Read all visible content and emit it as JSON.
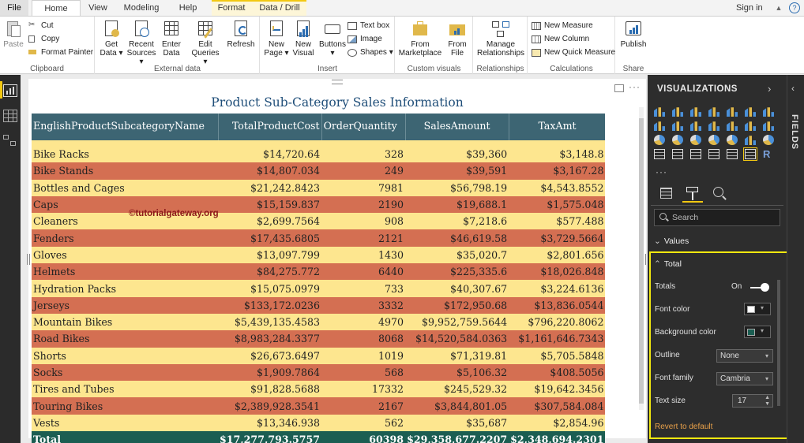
{
  "ribbon_tabs": {
    "file": "File",
    "home": "Home",
    "view": "View",
    "modeling": "Modeling",
    "help": "Help",
    "format": "Format",
    "data_drill": "Data / Drill"
  },
  "signin": "Sign in",
  "ribbon": {
    "clipboard": {
      "label": "Clipboard",
      "paste": "Paste",
      "cut": "Cut",
      "copy": "Copy",
      "format_painter": "Format Painter"
    },
    "external_data": {
      "label": "External data",
      "get_data_1": "Get",
      "get_data_2": "Data",
      "recent_sources_1": "Recent",
      "recent_sources_2": "Sources",
      "enter_data_1": "Enter",
      "enter_data_2": "Data",
      "edit_queries_1": "Edit",
      "edit_queries_2": "Queries",
      "refresh": "Refresh"
    },
    "insert": {
      "label": "Insert",
      "new_page_1": "New",
      "new_page_2": "Page",
      "new_visual_1": "New",
      "new_visual_2": "Visual",
      "buttons": "Buttons",
      "text_box": "Text box",
      "image": "Image",
      "shapes": "Shapes"
    },
    "custom_visuals": {
      "label": "Custom visuals",
      "from_marketplace_1": "From",
      "from_marketplace_2": "Marketplace",
      "from_file_1": "From",
      "from_file_2": "File"
    },
    "relationships": {
      "label": "Relationships",
      "manage_1": "Manage",
      "manage_2": "Relationships"
    },
    "calculations": {
      "label": "Calculations",
      "new_measure": "New Measure",
      "new_column": "New Column",
      "new_quick_measure": "New Quick Measure"
    },
    "share": {
      "label": "Share",
      "publish": "Publish"
    }
  },
  "visual": {
    "title": "Product Sub-Category Sales Information",
    "watermark": "©tutorialgateway.org",
    "columns": [
      "EnglishProductSubcategoryName",
      "TotalProductCost",
      "OrderQuantity",
      "SalesAmount",
      "TaxAmt"
    ],
    "rows": [
      [
        "Bike Racks",
        "$14,720.64",
        "328",
        "$39,360",
        "$3,148.8"
      ],
      [
        "Bike Stands",
        "$14,807.034",
        "249",
        "$39,591",
        "$3,167.28"
      ],
      [
        "Bottles and Cages",
        "$21,242.8423",
        "7981",
        "$56,798.19",
        "$4,543.8552"
      ],
      [
        "Caps",
        "$15,159.837",
        "2190",
        "$19,688.1",
        "$1,575.048"
      ],
      [
        "Cleaners",
        "$2,699.7564",
        "908",
        "$7,218.6",
        "$577.488"
      ],
      [
        "Fenders",
        "$17,435.6805",
        "2121",
        "$46,619.58",
        "$3,729.5664"
      ],
      [
        "Gloves",
        "$13,097.799",
        "1430",
        "$35,020.7",
        "$2,801.656"
      ],
      [
        "Helmets",
        "$84,275.772",
        "6440",
        "$225,335.6",
        "$18,026.848"
      ],
      [
        "Hydration Packs",
        "$15,075.0979",
        "733",
        "$40,307.67",
        "$3,224.6136"
      ],
      [
        "Jerseys",
        "$133,172.0236",
        "3332",
        "$172,950.68",
        "$13,836.0544"
      ],
      [
        "Mountain Bikes",
        "$5,439,135.4583",
        "4970",
        "$9,952,759.5644",
        "$796,220.8062"
      ],
      [
        "Road Bikes",
        "$8,983,284.3377",
        "8068",
        "$14,520,584.0363",
        "$1,161,646.7343"
      ],
      [
        "Shorts",
        "$26,673.6497",
        "1019",
        "$71,319.81",
        "$5,705.5848"
      ],
      [
        "Socks",
        "$1,909.7864",
        "568",
        "$5,106.32",
        "$408.5056"
      ],
      [
        "Tires and Tubes",
        "$91,828.5688",
        "17332",
        "$245,529.32",
        "$19,642.3456"
      ],
      [
        "Touring Bikes",
        "$2,389,928.3541",
        "2167",
        "$3,844,801.05",
        "$307,584.084"
      ],
      [
        "Vests",
        "$13,346.938",
        "562",
        "$35,687",
        "$2,854.96"
      ]
    ],
    "total": [
      "Total",
      "$17,277,793.5757",
      "60398",
      "$29,358,677.2207",
      "$2,348,694.2301"
    ],
    "colors": {
      "header_bg": "#3d6573",
      "row_odd_bg": "#fde68f",
      "row_even_bg": "#d46f52",
      "total_bg": "#1b5e52",
      "title_color": "#1f4e79"
    }
  },
  "viz_pane": {
    "title": "VISUALIZATIONS",
    "fields_tab": "FIELDS",
    "search_placeholder": "Search",
    "sections": {
      "values": "Values",
      "total": "Total"
    },
    "props": {
      "totals_label": "Totals",
      "totals_state": "On",
      "font_color_label": "Font color",
      "background_color_label": "Background color",
      "outline_label": "Outline",
      "outline_value": "None",
      "font_family_label": "Font family",
      "font_family_value": "Cambria",
      "text_size_label": "Text size",
      "text_size_value": "17",
      "revert": "Revert to default"
    },
    "colors": {
      "font_color": "#ffffff",
      "background_color": "#1b5e52",
      "accent": "#f2c811"
    }
  }
}
